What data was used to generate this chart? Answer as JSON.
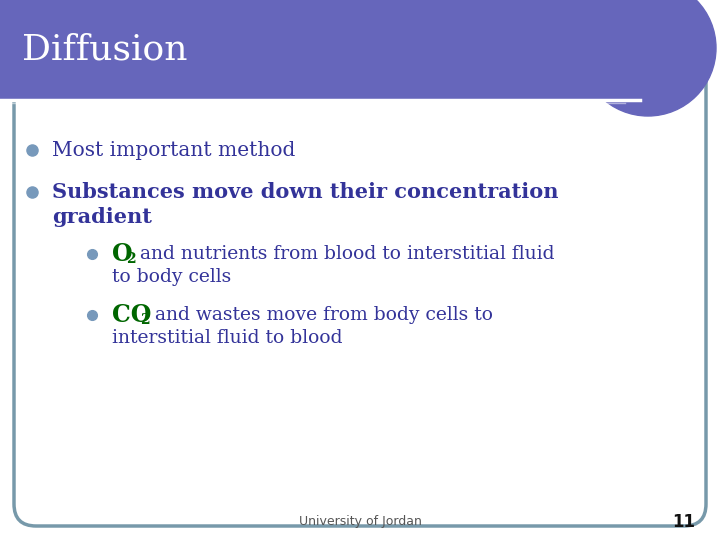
{
  "title": "Diffusion",
  "title_color": "#ffffff",
  "title_bg_color": "#6666bb",
  "title_font_size": 26,
  "bg_color": "#ffffff",
  "card_border_color": "#7799aa",
  "bullet_color": "#7799bb",
  "footer_text": "University of Jordan",
  "footer_page": "11",
  "bullet1_text": "Most important method",
  "bullet1_color": "#333399",
  "bullet2_line1": "Substances move down their concentration",
  "bullet2_line2": "gradient",
  "bullet2_color": "#333399",
  "sub_bullet1_O": "O",
  "sub_bullet1_2": "2",
  "sub_bullet1_rest1": " and nutrients from blood to interstitial fluid",
  "sub_bullet1_rest2": "to body cells",
  "sub_bullet2_CO": "CO",
  "sub_bullet2_2": "2",
  "sub_bullet2_rest1": " and wastes move from body cells to",
  "sub_bullet2_rest2": "interstitial fluid to blood",
  "green_color": "#006600",
  "text_color": "#333399"
}
